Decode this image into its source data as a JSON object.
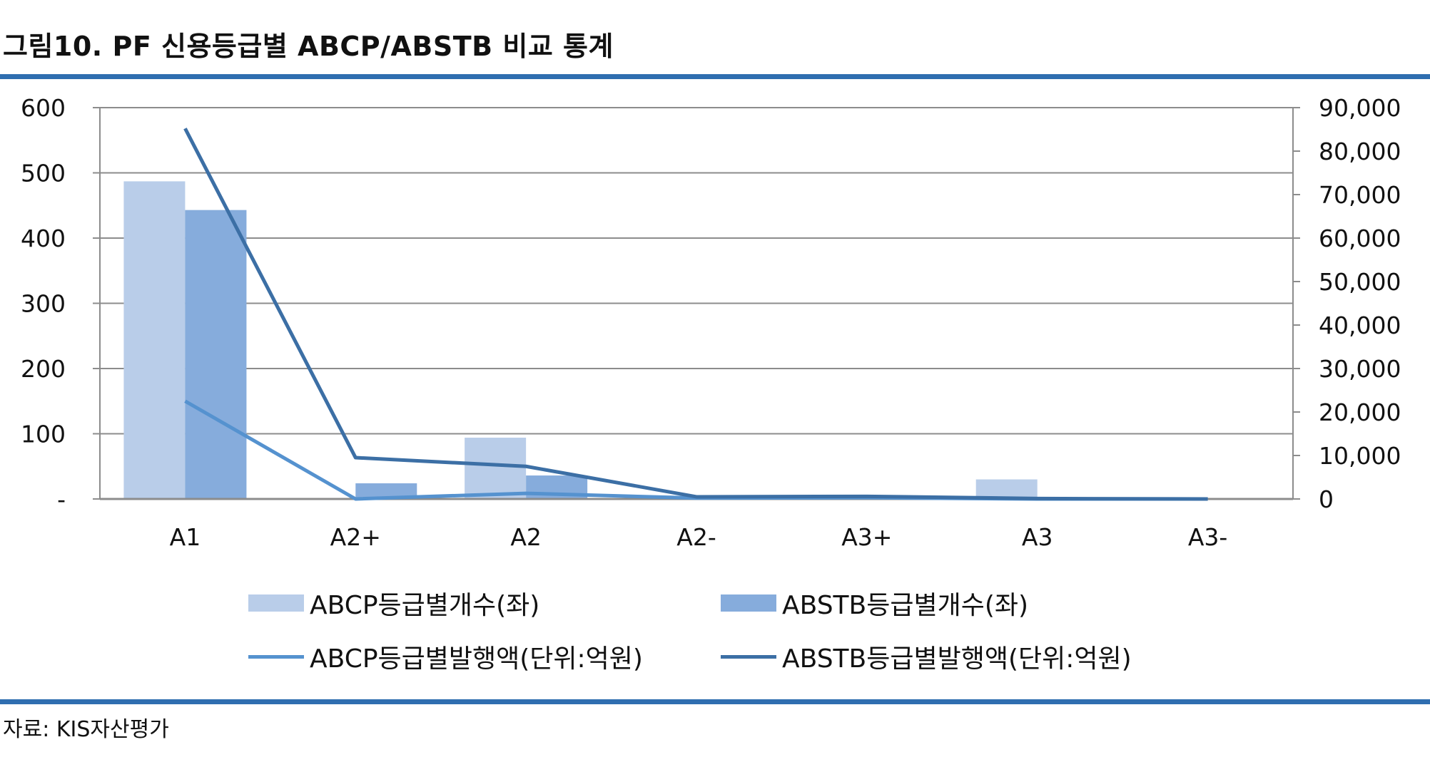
{
  "header": {
    "title": "그림10. PF 신용등급별 ABCP/ABSTB 비교 통계"
  },
  "footer": {
    "source": "자료: KIS자산평가"
  },
  "colors": {
    "abcp_count": "#b9cde9",
    "abstb_count": "#86acdc",
    "abcp_amount": "#5592cf",
    "abstb_amount": "#3c6fa5",
    "rule": "#2f6eb0",
    "grid": "#8c8c8c"
  },
  "chart_data": {
    "type": "bar",
    "categories": [
      "A1",
      "A2+",
      "A2",
      "A2-",
      "A3+",
      "A3",
      "A3-"
    ],
    "y_left": {
      "range": [
        0,
        600
      ],
      "ticks": [
        0,
        100,
        200,
        300,
        400,
        500,
        600
      ],
      "tick_labels": [
        "-",
        "100",
        "200",
        "300",
        "400",
        "500",
        "600"
      ]
    },
    "y_right": {
      "range": [
        0,
        90000
      ],
      "ticks": [
        0,
        10000,
        20000,
        30000,
        40000,
        50000,
        60000,
        70000,
        80000,
        90000
      ],
      "tick_labels": [
        "0",
        "10,000",
        "20,000",
        "30,000",
        "40,000",
        "50,000",
        "60,000",
        "70,000",
        "80,000",
        "90,000"
      ]
    },
    "grid": true,
    "legend_position": "bottom",
    "series": [
      {
        "name": "ABCP등급별개수(좌)",
        "type": "bar",
        "axis": "left",
        "values": [
          487,
          0,
          94,
          0,
          0,
          30,
          0
        ]
      },
      {
        "name": "ABSTB등급별개수(좌)",
        "type": "bar",
        "axis": "left",
        "values": [
          443,
          24,
          36,
          0,
          0,
          0,
          1
        ]
      },
      {
        "name": "ABCP등급별발행액(단위:억원)",
        "type": "line",
        "axis": "right",
        "values": [
          22500,
          0,
          1300,
          200,
          300,
          0,
          0
        ]
      },
      {
        "name": "ABSTB등급별발행액(단위:억원)",
        "type": "line",
        "axis": "right",
        "values": [
          85200,
          9500,
          7500,
          500,
          600,
          100,
          0
        ]
      }
    ]
  }
}
